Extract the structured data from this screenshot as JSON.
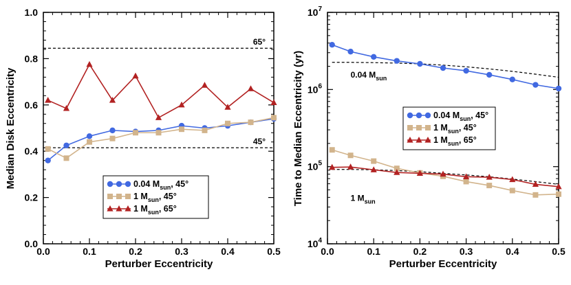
{
  "chart_data": [
    {
      "type": "line",
      "id": "left",
      "xlabel": "Perturber Eccentricity",
      "ylabel": "Median Disk Eccentricity",
      "xlim": [
        0,
        0.5
      ],
      "ylim": [
        0,
        1.0
      ],
      "yscale": "linear",
      "xticks": [
        "0.0",
        "0.1",
        "0.2",
        "0.3",
        "0.4",
        "0.5"
      ],
      "yticks": [
        "0.0",
        "0.2",
        "0.4",
        "0.6",
        "0.8",
        "1.0"
      ],
      "x": [
        0.01,
        0.05,
        0.1,
        0.15,
        0.2,
        0.25,
        0.3,
        0.35,
        0.4,
        0.45,
        0.5
      ],
      "series": [
        {
          "name": "0.04 M",
          "sub": "sun",
          "tail": ", 45°",
          "color": "#4169E1",
          "marker": "circle",
          "values": [
            0.36,
            0.425,
            0.465,
            0.49,
            0.485,
            0.49,
            0.51,
            0.5,
            0.51,
            0.525,
            0.54
          ]
        },
        {
          "name": "1 M",
          "sub": "sun",
          "tail": ", 45°",
          "color": "#D2B48C",
          "marker": "square",
          "values": [
            0.41,
            0.37,
            0.44,
            0.455,
            0.48,
            0.48,
            0.495,
            0.49,
            0.52,
            0.525,
            0.545
          ]
        },
        {
          "name": "1 M",
          "sub": "sun",
          "tail": ", 65°",
          "color": "#B22222",
          "marker": "triangle",
          "values": [
            0.62,
            0.585,
            0.775,
            0.62,
            0.725,
            0.545,
            0.6,
            0.685,
            0.59,
            0.67,
            0.61
          ]
        }
      ],
      "reference_lines": [
        {
          "y": 0.845,
          "label": "65°"
        },
        {
          "y": 0.415,
          "label": "45°"
        }
      ]
    },
    {
      "type": "line",
      "id": "right",
      "xlabel": "Perturber Eccentricity",
      "ylabel": "Time to Median Eccentricity (yr)",
      "xlim": [
        0,
        0.5
      ],
      "ylim": [
        10000,
        10000000
      ],
      "yscale": "log",
      "xticks": [
        "0.0",
        "0.1",
        "0.2",
        "0.3",
        "0.4",
        "0.5"
      ],
      "yticks": [
        {
          "base": "10",
          "exp": "4"
        },
        {
          "base": "10",
          "exp": "5"
        },
        {
          "base": "10",
          "exp": "6"
        },
        {
          "base": "10",
          "exp": "7"
        }
      ],
      "x": [
        0.01,
        0.05,
        0.1,
        0.15,
        0.2,
        0.25,
        0.3,
        0.35,
        0.4,
        0.45,
        0.5
      ],
      "series": [
        {
          "name": "0.04 M",
          "sub": "sun",
          "tail": ", 45°",
          "color": "#4169E1",
          "marker": "circle",
          "values": [
            3800000,
            3100000,
            2650000,
            2350000,
            2150000,
            1900000,
            1750000,
            1550000,
            1350000,
            1150000,
            1030000
          ]
        },
        {
          "name": "1 M",
          "sub": "sun",
          "tail": ", 45°",
          "color": "#D2B48C",
          "marker": "square",
          "values": [
            165000,
            140000,
            118000,
            95000,
            83000,
            75000,
            64000,
            57000,
            49000,
            43000,
            44000
          ]
        },
        {
          "name": "1 M",
          "sub": "sun",
          "tail": ", 65°",
          "color": "#B22222",
          "marker": "triangle",
          "values": [
            98000,
            99000,
            91000,
            84000,
            82000,
            80000,
            74000,
            73000,
            68000,
            59000,
            55000
          ]
        }
      ],
      "model_curves": [
        {
          "label_main": "0.04 M",
          "label_sub": "sun",
          "values": [
            2250000,
            2250000,
            2230000,
            2200000,
            2150000,
            2070000,
            1970000,
            1850000,
            1720000,
            1580000,
            1440000
          ]
        },
        {
          "label_main": "1 M",
          "label_sub": "sun",
          "values": [
            92000,
            92000,
            91000,
            89000,
            86000,
            82000,
            78000,
            74000,
            69000,
            64000,
            59000
          ]
        }
      ]
    }
  ]
}
